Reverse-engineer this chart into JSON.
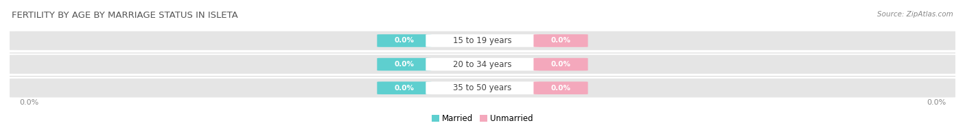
{
  "title": "Female Fertility by Age by Marriage Status in Isleta",
  "title_display": "FERTILITY BY AGE BY MARRIAGE STATUS IN ISLETA",
  "source_text": "Source: ZipAtlas.com",
  "categories": [
    "15 to 19 years",
    "20 to 34 years",
    "35 to 50 years"
  ],
  "married_values": [
    0.0,
    0.0,
    0.0
  ],
  "unmarried_values": [
    0.0,
    0.0,
    0.0
  ],
  "married_color": "#5ecfcf",
  "unmarried_color": "#f4a8bc",
  "bar_bg_color": "#e5e5e5",
  "bar_bg_color2": "#f0f0f0",
  "bg_color": "#ffffff",
  "title_fontsize": 9.5,
  "source_fontsize": 7.5,
  "label_fontsize": 8,
  "category_fontsize": 8.5,
  "value_label_fontsize": 7.5,
  "legend_fontsize": 8.5,
  "axis_label_left": "0.0%",
  "axis_label_right": "0.0%"
}
